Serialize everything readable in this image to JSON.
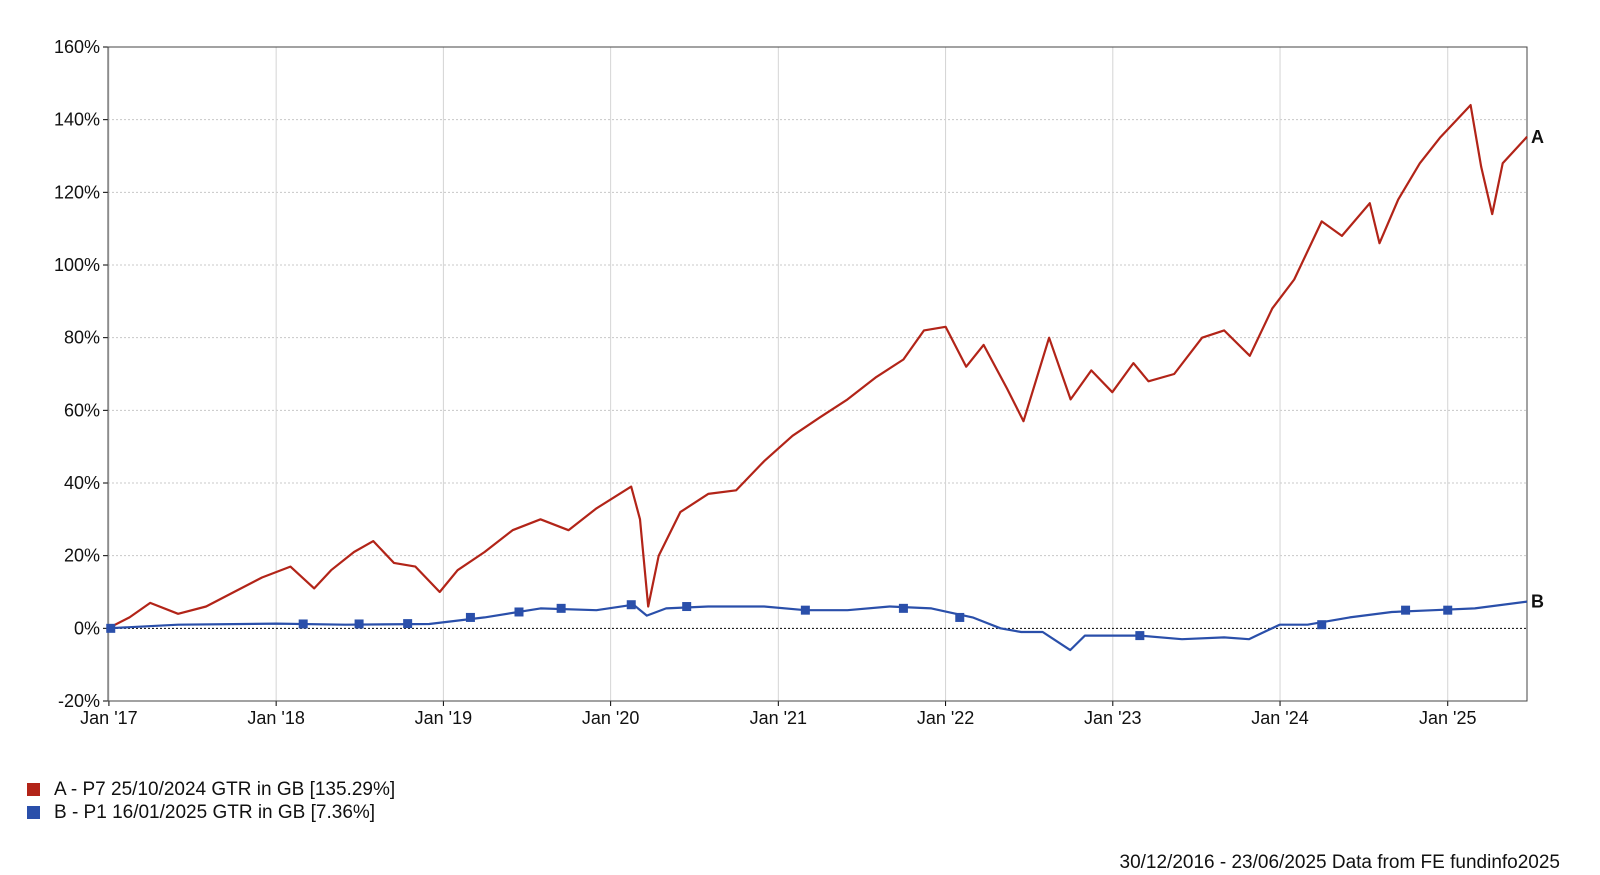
{
  "chart_data": {
    "type": "line",
    "y_unit": "%",
    "ylim": [
      -20,
      160
    ],
    "y_ticks": [
      -20,
      0,
      20,
      40,
      60,
      80,
      100,
      120,
      140,
      160
    ],
    "y_tick_labels": [
      "-20%",
      "0%",
      "20%",
      "40%",
      "60%",
      "80%",
      "100%",
      "120%",
      "140%",
      "160%"
    ],
    "x_range": [
      "2016-12-30",
      "2025-06-23"
    ],
    "x_ticks": [
      "2017-01-01",
      "2018-01-01",
      "2019-01-01",
      "2020-01-01",
      "2021-01-01",
      "2022-01-01",
      "2023-01-01",
      "2024-01-01",
      "2025-01-01"
    ],
    "x_tick_labels": [
      "Jan '17",
      "Jan '18",
      "Jan '19",
      "Jan '20",
      "Jan '21",
      "Jan '22",
      "Jan '23",
      "Jan '24",
      "Jan '25"
    ],
    "grid": true,
    "zero_line": true,
    "series": [
      {
        "name": "A - P7 25/10/2024 GTR in GB [135.29%]",
        "end_label": "A",
        "color": "#b22418",
        "points": [
          [
            "2016-12-30",
            0
          ],
          [
            "2017-02-15",
            3
          ],
          [
            "2017-04-01",
            7
          ],
          [
            "2017-06-01",
            4
          ],
          [
            "2017-08-01",
            6
          ],
          [
            "2017-10-01",
            10
          ],
          [
            "2017-12-01",
            14
          ],
          [
            "2018-02-01",
            17
          ],
          [
            "2018-03-25",
            11
          ],
          [
            "2018-05-01",
            16
          ],
          [
            "2018-06-20",
            21
          ],
          [
            "2018-08-01",
            24
          ],
          [
            "2018-09-15",
            18
          ],
          [
            "2018-11-01",
            17
          ],
          [
            "2018-12-24",
            10
          ],
          [
            "2019-02-01",
            16
          ],
          [
            "2019-04-01",
            21
          ],
          [
            "2019-06-01",
            27
          ],
          [
            "2019-08-01",
            30
          ],
          [
            "2019-10-01",
            27
          ],
          [
            "2019-12-01",
            33
          ],
          [
            "2020-02-15",
            39
          ],
          [
            "2020-03-05",
            30
          ],
          [
            "2020-03-23",
            6
          ],
          [
            "2020-04-15",
            20
          ],
          [
            "2020-06-01",
            32
          ],
          [
            "2020-08-01",
            37
          ],
          [
            "2020-10-01",
            38
          ],
          [
            "2020-12-01",
            46
          ],
          [
            "2021-02-01",
            53
          ],
          [
            "2021-04-01",
            58
          ],
          [
            "2021-06-01",
            63
          ],
          [
            "2021-08-01",
            69
          ],
          [
            "2021-10-01",
            74
          ],
          [
            "2021-11-15",
            82
          ],
          [
            "2022-01-01",
            83
          ],
          [
            "2022-02-15",
            72
          ],
          [
            "2022-03-25",
            78
          ],
          [
            "2022-05-15",
            66
          ],
          [
            "2022-06-20",
            57
          ],
          [
            "2022-08-15",
            80
          ],
          [
            "2022-10-01",
            63
          ],
          [
            "2022-11-15",
            71
          ],
          [
            "2022-12-31",
            65
          ],
          [
            "2023-02-15",
            73
          ],
          [
            "2023-03-20",
            68
          ],
          [
            "2023-05-15",
            70
          ],
          [
            "2023-07-15",
            80
          ],
          [
            "2023-09-01",
            82
          ],
          [
            "2023-10-27",
            75
          ],
          [
            "2023-12-15",
            88
          ],
          [
            "2024-02-01",
            96
          ],
          [
            "2024-04-01",
            112
          ],
          [
            "2024-05-15",
            108
          ],
          [
            "2024-07-15",
            117
          ],
          [
            "2024-08-05",
            106
          ],
          [
            "2024-09-15",
            118
          ],
          [
            "2024-11-01",
            128
          ],
          [
            "2024-12-15",
            135
          ],
          [
            "2025-02-20",
            144
          ],
          [
            "2025-03-15",
            127
          ],
          [
            "2025-04-08",
            114
          ],
          [
            "2025-05-01",
            128
          ],
          [
            "2025-06-23",
            135.29
          ]
        ]
      },
      {
        "name": "B - P1 16/01/2025 GTR in GB [7.36%]",
        "end_label": "B",
        "color": "#2a4faa",
        "points": [
          [
            "2016-12-30",
            0
          ],
          [
            "2017-06-01",
            1
          ],
          [
            "2018-01-01",
            1.3
          ],
          [
            "2018-06-01",
            1
          ],
          [
            "2018-12-01",
            1.2
          ],
          [
            "2019-04-01",
            3
          ],
          [
            "2019-08-01",
            5.5
          ],
          [
            "2019-12-01",
            5
          ],
          [
            "2020-02-20",
            6.5
          ],
          [
            "2020-03-20",
            3.5
          ],
          [
            "2020-05-01",
            5.5
          ],
          [
            "2020-08-01",
            6
          ],
          [
            "2020-12-01",
            6
          ],
          [
            "2021-03-01",
            5
          ],
          [
            "2021-06-01",
            5
          ],
          [
            "2021-09-01",
            6
          ],
          [
            "2021-12-01",
            5.5
          ],
          [
            "2022-03-01",
            3
          ],
          [
            "2022-05-01",
            0
          ],
          [
            "2022-06-15",
            -1
          ],
          [
            "2022-08-01",
            -1
          ],
          [
            "2022-09-30",
            -6
          ],
          [
            "2022-11-01",
            -2
          ],
          [
            "2022-12-31",
            -2
          ],
          [
            "2023-03-01",
            -2
          ],
          [
            "2023-06-01",
            -3
          ],
          [
            "2023-09-01",
            -2.5
          ],
          [
            "2023-10-25",
            -3
          ],
          [
            "2023-12-31",
            1
          ],
          [
            "2024-03-01",
            1
          ],
          [
            "2024-06-01",
            3
          ],
          [
            "2024-09-01",
            4.5
          ],
          [
            "2024-12-01",
            5
          ],
          [
            "2025-03-01",
            5.5
          ],
          [
            "2025-06-23",
            7.36
          ]
        ],
        "markers": [
          [
            "2017-01-05",
            0
          ],
          [
            "2018-03-01",
            1.2
          ],
          [
            "2018-07-01",
            1.2
          ],
          [
            "2018-10-15",
            1.3
          ],
          [
            "2019-03-01",
            3
          ],
          [
            "2019-06-15",
            4.5
          ],
          [
            "2019-09-15",
            5.5
          ],
          [
            "2020-02-15",
            6.5
          ],
          [
            "2020-06-15",
            6
          ],
          [
            "2021-03-01",
            5
          ],
          [
            "2021-10-01",
            5.5
          ],
          [
            "2022-02-01",
            3
          ],
          [
            "2023-03-01",
            -2
          ],
          [
            "2024-04-01",
            1
          ],
          [
            "2024-10-01",
            5
          ],
          [
            "2025-01-01",
            5
          ]
        ]
      }
    ]
  },
  "footer": {
    "text": "30/12/2016 - 23/06/2025 Data from FE fundinfo2025"
  }
}
